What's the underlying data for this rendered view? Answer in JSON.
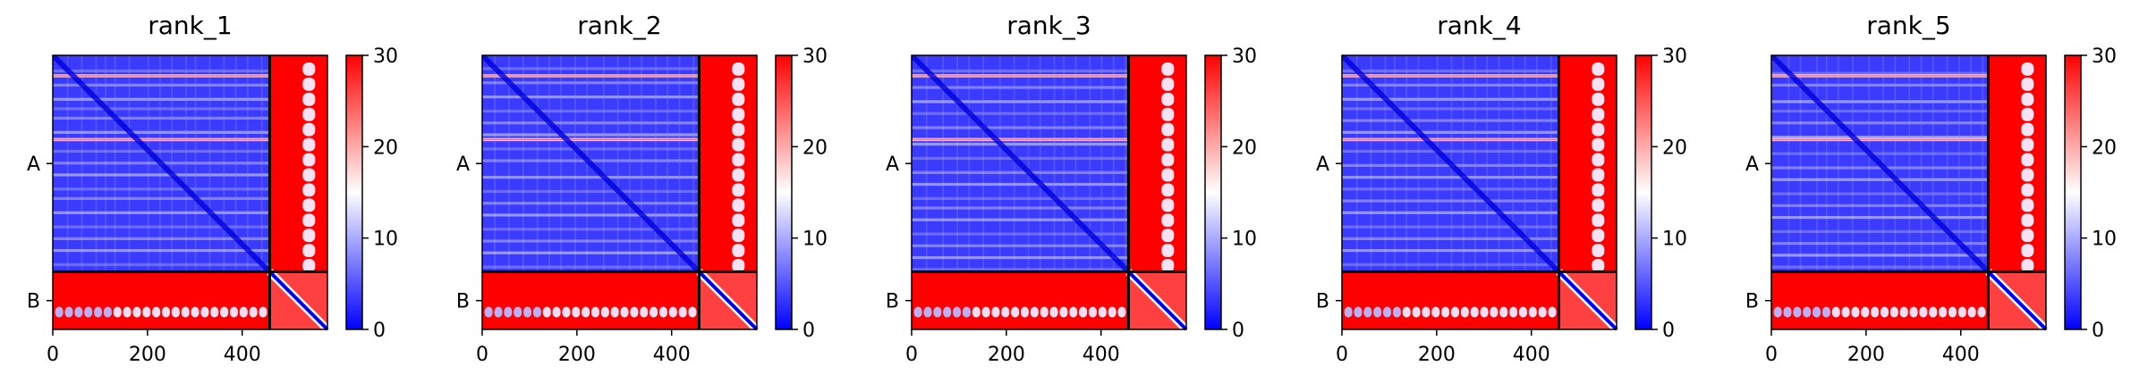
{
  "chart_data": [
    {
      "type": "heatmap",
      "title": "rank_1",
      "xlabel": "",
      "ylabel": "",
      "chains": [
        "A",
        "B"
      ],
      "chain_boundary": 458,
      "xlim": [
        0,
        580
      ],
      "ylim": [
        580,
        0
      ],
      "x_ticks": [
        0,
        200,
        400
      ],
      "colorbar": {
        "range": [
          0,
          30
        ],
        "ticks": [
          0,
          10,
          20,
          30
        ],
        "colormap": "bwr"
      },
      "cmap_colors": [
        "#0000ff",
        "#ffffff",
        "#ff0000"
      ],
      "stripe_rows": [
        30,
        60,
        90,
        110,
        130,
        160,
        200,
        225,
        250,
        280,
        300,
        330,
        360,
        385,
        410,
        440
      ],
      "highlight_rows": [
        40,
        175
      ]
    },
    {
      "type": "heatmap",
      "title": "rank_2",
      "xlabel": "",
      "ylabel": "",
      "chains": [
        "A",
        "B"
      ],
      "chain_boundary": 458,
      "xlim": [
        0,
        580
      ],
      "ylim": [
        580,
        0
      ],
      "x_ticks": [
        0,
        200,
        400
      ],
      "colorbar": {
        "range": [
          0,
          30
        ],
        "ticks": [
          0,
          10,
          20,
          30
        ],
        "colormap": "bwr"
      },
      "cmap_colors": [
        "#0000ff",
        "#ffffff",
        "#ff0000"
      ],
      "stripe_rows": [
        25,
        55,
        85,
        115,
        140,
        165,
        195,
        220,
        255,
        285,
        310,
        335,
        365,
        390,
        415,
        445
      ],
      "highlight_rows": [
        40,
        175
      ]
    },
    {
      "type": "heatmap",
      "title": "rank_3",
      "xlabel": "",
      "ylabel": "",
      "chains": [
        "A",
        "B"
      ],
      "chain_boundary": 458,
      "xlim": [
        0,
        580
      ],
      "ylim": [
        580,
        0
      ],
      "x_ticks": [
        0,
        200,
        400
      ],
      "colorbar": {
        "range": [
          0,
          30
        ],
        "ticks": [
          0,
          10,
          20,
          30
        ],
        "colormap": "bwr"
      },
      "cmap_colors": [
        "#0000ff",
        "#ffffff",
        "#ff0000"
      ],
      "stripe_rows": [
        30,
        65,
        95,
        120,
        150,
        185,
        215,
        245,
        270,
        300,
        320,
        345,
        375,
        400,
        425,
        450
      ],
      "highlight_rows": [
        40,
        175
      ]
    },
    {
      "type": "heatmap",
      "title": "rank_4",
      "xlabel": "",
      "ylabel": "",
      "chains": [
        "A",
        "B"
      ],
      "chain_boundary": 458,
      "xlim": [
        0,
        580
      ],
      "ylim": [
        580,
        0
      ],
      "x_ticks": [
        0,
        200,
        400
      ],
      "colorbar": {
        "range": [
          0,
          30
        ],
        "ticks": [
          0,
          10,
          20,
          30
        ],
        "colormap": "bwr"
      },
      "cmap_colors": [
        "#0000ff",
        "#ffffff",
        "#ff0000"
      ],
      "stripe_rows": [
        30,
        60,
        90,
        110,
        135,
        160,
        200,
        230,
        255,
        280,
        305,
        330,
        360,
        385,
        410,
        440
      ],
      "highlight_rows": [
        40,
        175
      ]
    },
    {
      "type": "heatmap",
      "title": "rank_5",
      "xlabel": "",
      "ylabel": "",
      "chains": [
        "A",
        "B"
      ],
      "chain_boundary": 458,
      "xlim": [
        0,
        580
      ],
      "ylim": [
        580,
        0
      ],
      "x_ticks": [
        0,
        200,
        400
      ],
      "colorbar": {
        "range": [
          0,
          30
        ],
        "ticks": [
          0,
          10,
          20,
          30
        ],
        "colormap": "bwr"
      },
      "cmap_colors": [
        "#0000ff",
        "#ffffff",
        "#ff0000"
      ],
      "stripe_rows": [
        35,
        60,
        95,
        115,
        140,
        170,
        205,
        235,
        260,
        290,
        315,
        340,
        370,
        395,
        420,
        445
      ],
      "highlight_rows": [
        40,
        175
      ]
    }
  ]
}
